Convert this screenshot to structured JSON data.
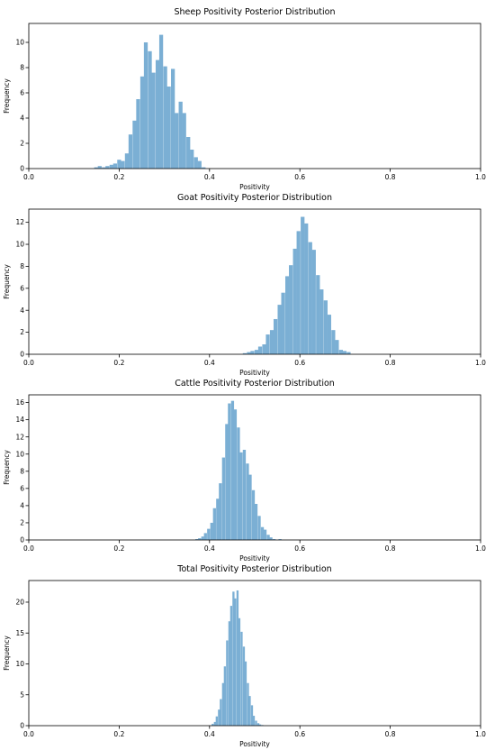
{
  "chart_data": [
    {
      "type": "bar",
      "title": "Sheep Positivity Posterior Distribution",
      "xlabel": "Positivity",
      "ylabel": "Frequency",
      "xlim": [
        0.0,
        1.0
      ],
      "ylim": [
        0,
        11.5
      ],
      "xticks": [
        "0.0",
        "0.2",
        "0.4",
        "0.6",
        "0.8",
        "1.0"
      ],
      "yticks": [
        "0",
        "2",
        "4",
        "6",
        "8",
        "10"
      ],
      "ytick_values": [
        0,
        2,
        4,
        6,
        8,
        10
      ],
      "grid": false,
      "color": "#7bafd4",
      "bin_width": 0.0085,
      "x": [
        0.149,
        0.157,
        0.166,
        0.174,
        0.183,
        0.191,
        0.2,
        0.208,
        0.217,
        0.225,
        0.234,
        0.242,
        0.251,
        0.259,
        0.268,
        0.276,
        0.285,
        0.293,
        0.302,
        0.31,
        0.319,
        0.327,
        0.336,
        0.344,
        0.353,
        0.361,
        0.37,
        0.378,
        0.387
      ],
      "values": [
        0.1,
        0.2,
        0.1,
        0.2,
        0.3,
        0.4,
        0.7,
        0.6,
        1.2,
        2.7,
        3.8,
        5.5,
        7.3,
        10.0,
        9.3,
        7.6,
        8.6,
        10.6,
        8.1,
        6.5,
        7.9,
        4.4,
        5.3,
        4.4,
        2.5,
        1.5,
        0.9,
        0.6,
        0.1
      ]
    },
    {
      "type": "bar",
      "title": "Goat Positivity Posterior Distribution",
      "xlabel": "Positivity",
      "ylabel": "Frequency",
      "xlim": [
        0.0,
        1.0
      ],
      "ylim": [
        0,
        13.2
      ],
      "xticks": [
        "0.0",
        "0.2",
        "0.4",
        "0.6",
        "0.8",
        "1.0"
      ],
      "yticks": [
        "0",
        "2",
        "4",
        "6",
        "8",
        "10",
        "12"
      ],
      "ytick_values": [
        0,
        2,
        4,
        6,
        8,
        10,
        12
      ],
      "grid": false,
      "color": "#7bafd4",
      "bin_width": 0.0085,
      "x": [
        0.478,
        0.487,
        0.495,
        0.504,
        0.512,
        0.521,
        0.529,
        0.538,
        0.546,
        0.555,
        0.563,
        0.572,
        0.58,
        0.589,
        0.597,
        0.606,
        0.614,
        0.623,
        0.631,
        0.64,
        0.648,
        0.657,
        0.665,
        0.674,
        0.682,
        0.691,
        0.699,
        0.708
      ],
      "values": [
        0.1,
        0.2,
        0.3,
        0.4,
        0.7,
        0.9,
        1.8,
        2.2,
        3.2,
        4.5,
        5.6,
        7.1,
        8.1,
        9.6,
        11.2,
        12.5,
        11.9,
        10.2,
        9.5,
        7.2,
        5.9,
        4.9,
        3.6,
        2.2,
        1.3,
        0.4,
        0.3,
        0.2
      ]
    },
    {
      "type": "bar",
      "title": "Cattle Positivity Posterior Distribution",
      "xlabel": "Positivity",
      "ylabel": "Frequency",
      "xlim": [
        0.0,
        1.0
      ],
      "ylim": [
        0,
        16.9
      ],
      "xticks": [
        "0.0",
        "0.2",
        "0.4",
        "0.6",
        "0.8",
        "1.0"
      ],
      "yticks": [
        "0",
        "2",
        "4",
        "6",
        "8",
        "10",
        "12",
        "14",
        "16"
      ],
      "ytick_values": [
        0,
        2,
        4,
        6,
        8,
        10,
        12,
        14,
        16
      ],
      "grid": false,
      "color": "#7bafd4",
      "bin_width": 0.0066,
      "x": [
        0.372,
        0.378,
        0.385,
        0.391,
        0.398,
        0.405,
        0.411,
        0.418,
        0.424,
        0.431,
        0.438,
        0.444,
        0.451,
        0.457,
        0.464,
        0.47,
        0.477,
        0.484,
        0.49,
        0.497,
        0.503,
        0.51,
        0.517,
        0.523,
        0.53,
        0.536,
        0.543,
        0.55,
        0.556
      ],
      "values": [
        0.1,
        0.2,
        0.4,
        0.8,
        1.3,
        2.0,
        3.7,
        4.8,
        6.6,
        9.6,
        13.5,
        15.9,
        16.2,
        15.2,
        13.1,
        10.2,
        10.5,
        8.9,
        7.6,
        5.8,
        4.2,
        2.8,
        1.5,
        1.2,
        0.6,
        0.3,
        0.1,
        0.0,
        0.1
      ]
    },
    {
      "type": "bar",
      "title": "Total Positivity Posterior Distribution",
      "xlabel": "Positivity",
      "ylabel": "Frequency",
      "xlim": [
        0.0,
        1.0
      ],
      "ylim": [
        0,
        23.5
      ],
      "xticks": [
        "0.0",
        "0.2",
        "0.4",
        "0.6",
        "0.8",
        "1.0"
      ],
      "yticks": [
        "0",
        "5",
        "10",
        "15",
        "20"
      ],
      "ytick_values": [
        0,
        5,
        10,
        15,
        20
      ],
      "grid": false,
      "color": "#7bafd4",
      "bin_width": 0.0046,
      "x": [
        0.407,
        0.412,
        0.416,
        0.421,
        0.425,
        0.43,
        0.434,
        0.439,
        0.444,
        0.448,
        0.453,
        0.457,
        0.462,
        0.466,
        0.471,
        0.476,
        0.48,
        0.485,
        0.489,
        0.494,
        0.498,
        0.503,
        0.508,
        0.512,
        0.517
      ],
      "values": [
        0.3,
        0.6,
        1.5,
        2.6,
        4.3,
        6.9,
        9.6,
        13.8,
        16.9,
        19.4,
        21.7,
        20.6,
        21.9,
        17.4,
        15.2,
        12.8,
        10.4,
        6.9,
        4.8,
        3.3,
        1.6,
        0.8,
        0.4,
        0.2,
        0.1
      ]
    }
  ]
}
